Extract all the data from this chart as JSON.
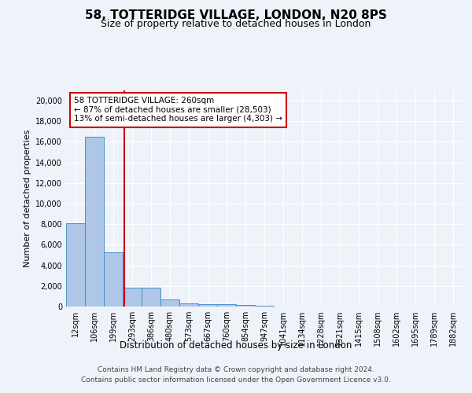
{
  "title": "58, TOTTERIDGE VILLAGE, LONDON, N20 8PS",
  "subtitle": "Size of property relative to detached houses in London",
  "xlabel": "Distribution of detached houses by size in London",
  "ylabel": "Number of detached properties",
  "bin_labels": [
    "12sqm",
    "106sqm",
    "199sqm",
    "293sqm",
    "386sqm",
    "480sqm",
    "573sqm",
    "667sqm",
    "760sqm",
    "854sqm",
    "947sqm",
    "1041sqm",
    "1134sqm",
    "1228sqm",
    "1321sqm",
    "1415sqm",
    "1508sqm",
    "1602sqm",
    "1695sqm",
    "1789sqm",
    "1882sqm"
  ],
  "bar_values": [
    8100,
    16500,
    5300,
    1800,
    1800,
    700,
    300,
    250,
    200,
    150,
    100,
    0,
    0,
    0,
    0,
    0,
    0,
    0,
    0,
    0,
    0
  ],
  "bar_color": "#aec6e8",
  "bar_edge_color": "#4a90c4",
  "property_line_x": 2.6,
  "property_line_color": "#cc0000",
  "annotation_text": "58 TOTTERIDGE VILLAGE: 260sqm\n← 87% of detached houses are smaller (28,503)\n13% of semi-detached houses are larger (4,303) →",
  "annotation_box_color": "#ffffff",
  "annotation_box_edge_color": "#cc0000",
  "ylim": [
    0,
    21000
  ],
  "yticks": [
    0,
    2000,
    4000,
    6000,
    8000,
    10000,
    12000,
    14000,
    16000,
    18000,
    20000
  ],
  "footer_line1": "Contains HM Land Registry data © Crown copyright and database right 2024.",
  "footer_line2": "Contains public sector information licensed under the Open Government Licence v3.0.",
  "bg_color": "#eef3fa",
  "plot_bg_color": "#eef3fa",
  "title_fontsize": 11,
  "subtitle_fontsize": 9,
  "ylabel_fontsize": 8,
  "xlabel_fontsize": 8.5,
  "tick_fontsize": 7,
  "annot_fontsize": 7.5,
  "footer_fontsize": 6.5
}
